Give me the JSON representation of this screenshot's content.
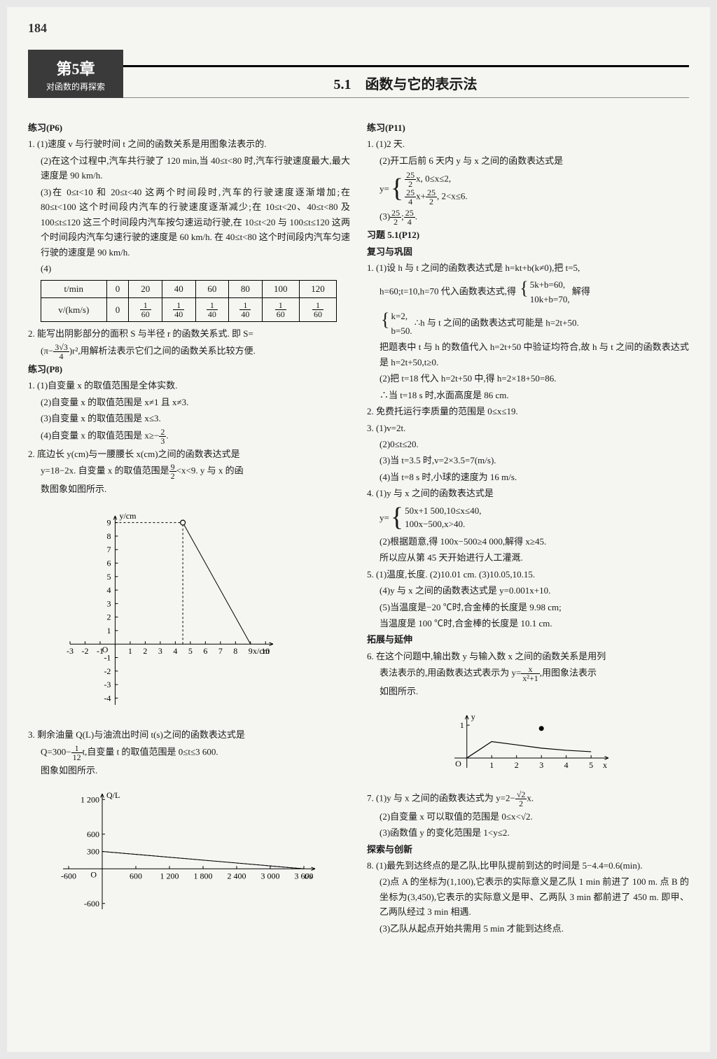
{
  "page_number": "184",
  "chapter": {
    "title": "第5章",
    "subtitle": "对函数的再探索"
  },
  "section_header": "5.1　函数与它的表示法",
  "left": {
    "ex_p6_label": "练习(P6)",
    "p6_1_1": "1. (1)速度 v 与行驶时间 t 之间的函数关系是用图象法表示的.",
    "p6_1_2": "(2)在这个过程中,汽车共行驶了 120 min,当 40≤t<80 时,汽车行驶速度最大,最大速度是 90 km/h.",
    "p6_1_3": "(3)在 0≤t<10 和 20≤t<40 这两个时间段时,汽车的行驶速度逐渐增加;在 80≤t<100 这个时间段内汽车的行驶速度逐渐减少;在 10≤t<20、40≤t<80 及 100≤t≤120 这三个时间段内汽车按匀速运动行驶,在 10≤t<20 与 100≤t≤120 这两个时间段内汽车匀速行驶的速度是 60 km/h. 在 40≤t<80 这个时间段内汽车匀速行驶的速度是 90 km/h.",
    "p6_1_4": "(4)",
    "table": {
      "row1_label": "t/min",
      "row1": [
        "0",
        "20",
        "40",
        "60",
        "80",
        "100",
        "120"
      ],
      "row2_label": "v/(km/s)",
      "row2_vals": [
        "0",
        "1/60",
        "1/40",
        "1/40",
        "1/40",
        "1/60",
        "1/60"
      ]
    },
    "p6_2a": "2. 能写出阴影部分的面积 S 与半径 r 的函数关系式. 即 S=",
    "p6_2_expr_open": "(π−",
    "p6_2_frac_n": "3√3",
    "p6_2_frac_d": "4",
    "p6_2_expr_close": ")r²,用解析法表示它们之间的函数关系比较方便.",
    "ex_p8_label": "练习(P8)",
    "p8_1_1": "1. (1)自变量 x 的取值范围是全体实数.",
    "p8_1_2": "(2)自变量 x 的取值范围是 x≠1 且 x≠3.",
    "p8_1_3": "(3)自变量 x 的取值范围是 x≤3.",
    "p8_1_4_a": "(4)自变量 x 的取值范围是 x≥−",
    "p8_1_4_n": "2",
    "p8_1_4_d": "3",
    "p8_1_4_b": ".",
    "p8_2a": "2. 底边长 y(cm)与一腰腰长 x(cm)之间的函数表达式是",
    "p8_2b_a": "y=18−2x. 自变量 x 的取值范围是",
    "p8_2b_n": "9",
    "p8_2b_d": "2",
    "p8_2b_b": "<x<9. y 与 x 的函",
    "p8_2c": "数图象如图所示.",
    "chart1": {
      "ylabel": "y/cm",
      "xlabel": "x/cm",
      "xmin": -3,
      "xmax": 10.5,
      "ymin": -4.5,
      "ymax": 9.5,
      "xticks": [
        -3,
        -2,
        -1,
        1,
        2,
        3,
        4,
        5,
        6,
        7,
        8,
        9,
        10
      ],
      "yticks": [
        -4,
        -3,
        -2,
        -1,
        1,
        2,
        3,
        4,
        5,
        6,
        7,
        8,
        9
      ],
      "dashed_v": 4.5,
      "dashed_h": 9,
      "line": [
        [
          4.5,
          9
        ],
        [
          9,
          0
        ]
      ],
      "open_point": [
        4.5,
        9
      ],
      "closed_point": null,
      "colors": {
        "bg": "#f5f5f2",
        "axis": "#000",
        "grid": "#000",
        "line": "#000",
        "dash": "#000"
      }
    },
    "p8_3a": "3. 剩余油量 Q(L)与油流出时间 t(s)之间的函数表达式是",
    "p8_3b_a": "Q=300−",
    "p8_3b_n": "1",
    "p8_3b_d": "12",
    "p8_3b_b": "t,自变量 t 的取值范围是 0≤t≤3 600.",
    "p8_3c": "图象如图所示.",
    "chart2": {
      "ylabel": "Q/L",
      "xlabel": "t/s",
      "xmin": -700,
      "xmax": 3800,
      "ymin": -700,
      "ymax": 1300,
      "xticks": [
        -600,
        600,
        1200,
        1800,
        2400,
        3000,
        3600
      ],
      "yticks": [
        -600,
        600,
        1200
      ],
      "dashed_v": 3600,
      "dashed_h": 300,
      "dash_point": [
        3600,
        0
      ],
      "line": [
        [
          0,
          300
        ],
        [
          3600,
          0
        ]
      ],
      "y_intercept_label": "300",
      "colors": {
        "bg": "#f5f5f2",
        "axis": "#000",
        "line": "#000",
        "dash": "#000"
      }
    }
  },
  "right": {
    "ex_p11_label": "练习(P11)",
    "p11_1_1": "1. (1)2 天.",
    "p11_1_2": "(2)开工后前 6 天内 y 与 x 之间的函数表达式是",
    "p11_eq_lhs": "y=",
    "p11_eq_l1_a": "",
    "p11_eq_l1_n": "25",
    "p11_eq_l1_d": "2",
    "p11_eq_l1_b": "x, 0≤x≤2,",
    "p11_eq_l2_a": "",
    "p11_eq_l2_n1": "25",
    "p11_eq_l2_d1": "4",
    "p11_eq_l2_mid": "x+",
    "p11_eq_l2_n2": "25",
    "p11_eq_l2_d2": "2",
    "p11_eq_l2_b": ", 2<x≤6.",
    "p11_1_3_a": "(3)",
    "p11_1_3_n1": "25",
    "p11_1_3_d1": "2",
    "p11_1_3_sep": ";",
    "p11_1_3_n2": "25",
    "p11_1_3_d2": "4",
    "p11_1_3_b": ".",
    "ex_5_1_label": "习题 5.1(P12)",
    "review_label": "复习与巩固",
    "r1a": "1. (1)设 h 与 t 之间的函数表达式是 h=kt+b(k≠0),把 t=5,",
    "r1b_a": "h=60;t=10,h=70 代入函数表达式,得 ",
    "r1b_brace1": "5k+b=60,",
    "r1b_brace2": "10k+b=70,",
    "r1b_b": " 解得",
    "r1c_brace1": "k=2,",
    "r1c_brace2": "b=50.",
    "r1c_b": " ∴h 与 t 之间的函数表达式可能是 h=2t+50.",
    "r1d": "把题表中 t 与 h 的数值代入 h=2t+50 中验证均符合,故 h 与 t 之间的函数表达式是 h=2t+50,t≥0.",
    "r1e": "(2)把 t=18 代入 h=2t+50 中,得 h=2×18+50=86.",
    "r1f": "∴当 t=18 s 时,水面高度是 86 cm.",
    "r2": "2. 免费托运行李质量的范围是 0≤x≤19.",
    "r3_1": "3. (1)v=2t.",
    "r3_2": "(2)0≤t≤20.",
    "r3_3": "(3)当 t=3.5 时,v=2×3.5=7(m/s).",
    "r3_4": "(4)当 t=8 s 时,小球的速度为 16 m/s.",
    "r4_1": "4. (1)y 与 x 之间的函数表达式是",
    "r4_eq_lhs": "y=",
    "r4_eq_l1": "50x+1 500,10≤x≤40,",
    "r4_eq_l2": "100x−500,x>40.",
    "r4_2": "(2)根据题意,得 100x−500≥4 000,解得 x≥45.",
    "r4_3": "所以应从第 45 天开始进行人工灌溉.",
    "r5_1": "5. (1)温度,长度. (2)10.01 cm. (3)10.05,10.15.",
    "r5_2": "(4)y 与 x 之间的函数表达式是 y=0.001x+10.",
    "r5_3": "(5)当温度是−20 ℃时,合金棒的长度是 9.98 cm;",
    "r5_4": "当温度是 100 ℃时,合金棒的长度是 10.1 cm.",
    "extend_label": "拓展与延伸",
    "r6a": "6. 在这个问题中,输出数 y 与输入数 x 之间的函数关系是用列",
    "r6b_a": "表法表示的,用函数表达式表示为 y=",
    "r6b_n": "x",
    "r6b_d": "x²+1",
    "r6b_b": ",用图象法表示",
    "r6c": "如图所示.",
    "chart3": {
      "ylabel": "y",
      "xlabel": "x",
      "xmin": -0.5,
      "xmax": 5.7,
      "ymin": -0.3,
      "ymax": 1.3,
      "xticks": [
        1,
        2,
        3,
        4,
        5
      ],
      "yticks": [
        1
      ],
      "points": [
        [
          0,
          0
        ],
        [
          1,
          0.5
        ],
        [
          2,
          0.4
        ],
        [
          3,
          0.3
        ],
        [
          4,
          0.235
        ],
        [
          5,
          0.192
        ]
      ],
      "big_point": [
        3,
        0.9
      ],
      "colors": {
        "bg": "#f5f5f2",
        "axis": "#000",
        "pt": "#000"
      }
    },
    "r7_1_a": "7. (1)y 与 x 之间的函数表达式为 y=2−",
    "r7_1_n": "√2",
    "r7_1_d": "2",
    "r7_1_b": "x.",
    "r7_2": "(2)自变量 x 可以取值的范围是 0≤x<√2.",
    "r7_3": "(3)函数值 y 的变化范围是 1<y≤2.",
    "explore_label": "探索与创新",
    "r8_1": "8. (1)最先到达终点的是乙队,比甲队提前到达的时间是 5−4.4=0.6(min).",
    "r8_2": "(2)点 A 的坐标为(1,100),它表示的实际意义是乙队 1 min 前进了 100 m. 点 B 的坐标为(3,450),它表示的实际意义是甲、乙两队 3 min 都前进了 450 m. 即甲、乙两队经过 3 min 相遇.",
    "r8_3": "(3)乙队从起点开始共需用 5 min 才能到达终点."
  }
}
